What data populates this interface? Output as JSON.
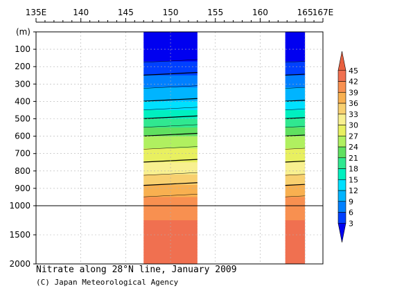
{
  "chart_data": {
    "type": "heatmap",
    "title": "Nitrate along 28°N line, January 2009",
    "credit": "(C) Japan Meteorological Agency",
    "x_axis": {
      "range_deg_e": [
        135,
        167
      ],
      "ticks": [
        135,
        140,
        145,
        150,
        155,
        160,
        165,
        167
      ],
      "tick_labels": [
        "135E",
        "140",
        "145",
        "150",
        "155",
        "160",
        "165",
        "167E"
      ]
    },
    "y_axis": {
      "unit_label": "(m)",
      "upper_range_m": [
        0,
        1000
      ],
      "lower_range_m": [
        1000,
        2000
      ],
      "ticks": [
        100,
        200,
        300,
        400,
        500,
        600,
        700,
        800,
        900,
        1000,
        1500,
        2000
      ],
      "tick_labels": [
        "100",
        "200",
        "300",
        "400",
        "500",
        "600",
        "700",
        "800",
        "900",
        "1000",
        "1500",
        "2000"
      ],
      "inverted": true
    },
    "colorbar": {
      "levels": [
        3,
        6,
        9,
        12,
        15,
        18,
        21,
        24,
        27,
        30,
        33,
        36,
        39,
        42,
        45
      ],
      "labels": [
        "3",
        "6",
        "9",
        "12",
        "15",
        "18",
        "21",
        "24",
        "27",
        "30",
        "33",
        "36",
        "39",
        "42",
        "45"
      ],
      "colors": [
        "#0000f0",
        "#0040ff",
        "#0080ff",
        "#00b4ff",
        "#00e0ff",
        "#00f0c0",
        "#30e890",
        "#60e060",
        "#b0f060",
        "#e8f060",
        "#f8f090",
        "#f8d070",
        "#f8b050",
        "#f89050",
        "#f07050",
        "#e86040"
      ]
    },
    "data_regions": [
      {
        "lon_range": [
          147,
          153
        ]
      },
      {
        "lon_range": [
          162.8,
          165
        ]
      }
    ],
    "profile": [
      {
        "depth_m": 0,
        "nitrate": 0.5
      },
      {
        "depth_m": 50,
        "nitrate": 0.5
      },
      {
        "depth_m": 100,
        "nitrate": 1
      },
      {
        "depth_m": 150,
        "nitrate": 2
      },
      {
        "depth_m": 200,
        "nitrate": 4
      },
      {
        "depth_m": 250,
        "nitrate": 6
      },
      {
        "depth_m": 300,
        "nitrate": 8
      },
      {
        "depth_m": 350,
        "nitrate": 10
      },
      {
        "depth_m": 400,
        "nitrate": 12
      },
      {
        "depth_m": 450,
        "nitrate": 15
      },
      {
        "depth_m": 500,
        "nitrate": 18
      },
      {
        "depth_m": 550,
        "nitrate": 21
      },
      {
        "depth_m": 600,
        "nitrate": 24
      },
      {
        "depth_m": 650,
        "nitrate": 26
      },
      {
        "depth_m": 700,
        "nitrate": 28
      },
      {
        "depth_m": 750,
        "nitrate": 30
      },
      {
        "depth_m": 800,
        "nitrate": 32
      },
      {
        "depth_m": 850,
        "nitrate": 34
      },
      {
        "depth_m": 900,
        "nitrate": 37
      },
      {
        "depth_m": 950,
        "nitrate": 39
      },
      {
        "depth_m": 1000,
        "nitrate": 41
      },
      {
        "depth_m": 1500,
        "nitrate": 43
      },
      {
        "depth_m": 2000,
        "nitrate": 42
      }
    ],
    "grid": true,
    "colorbar_position": "right"
  }
}
